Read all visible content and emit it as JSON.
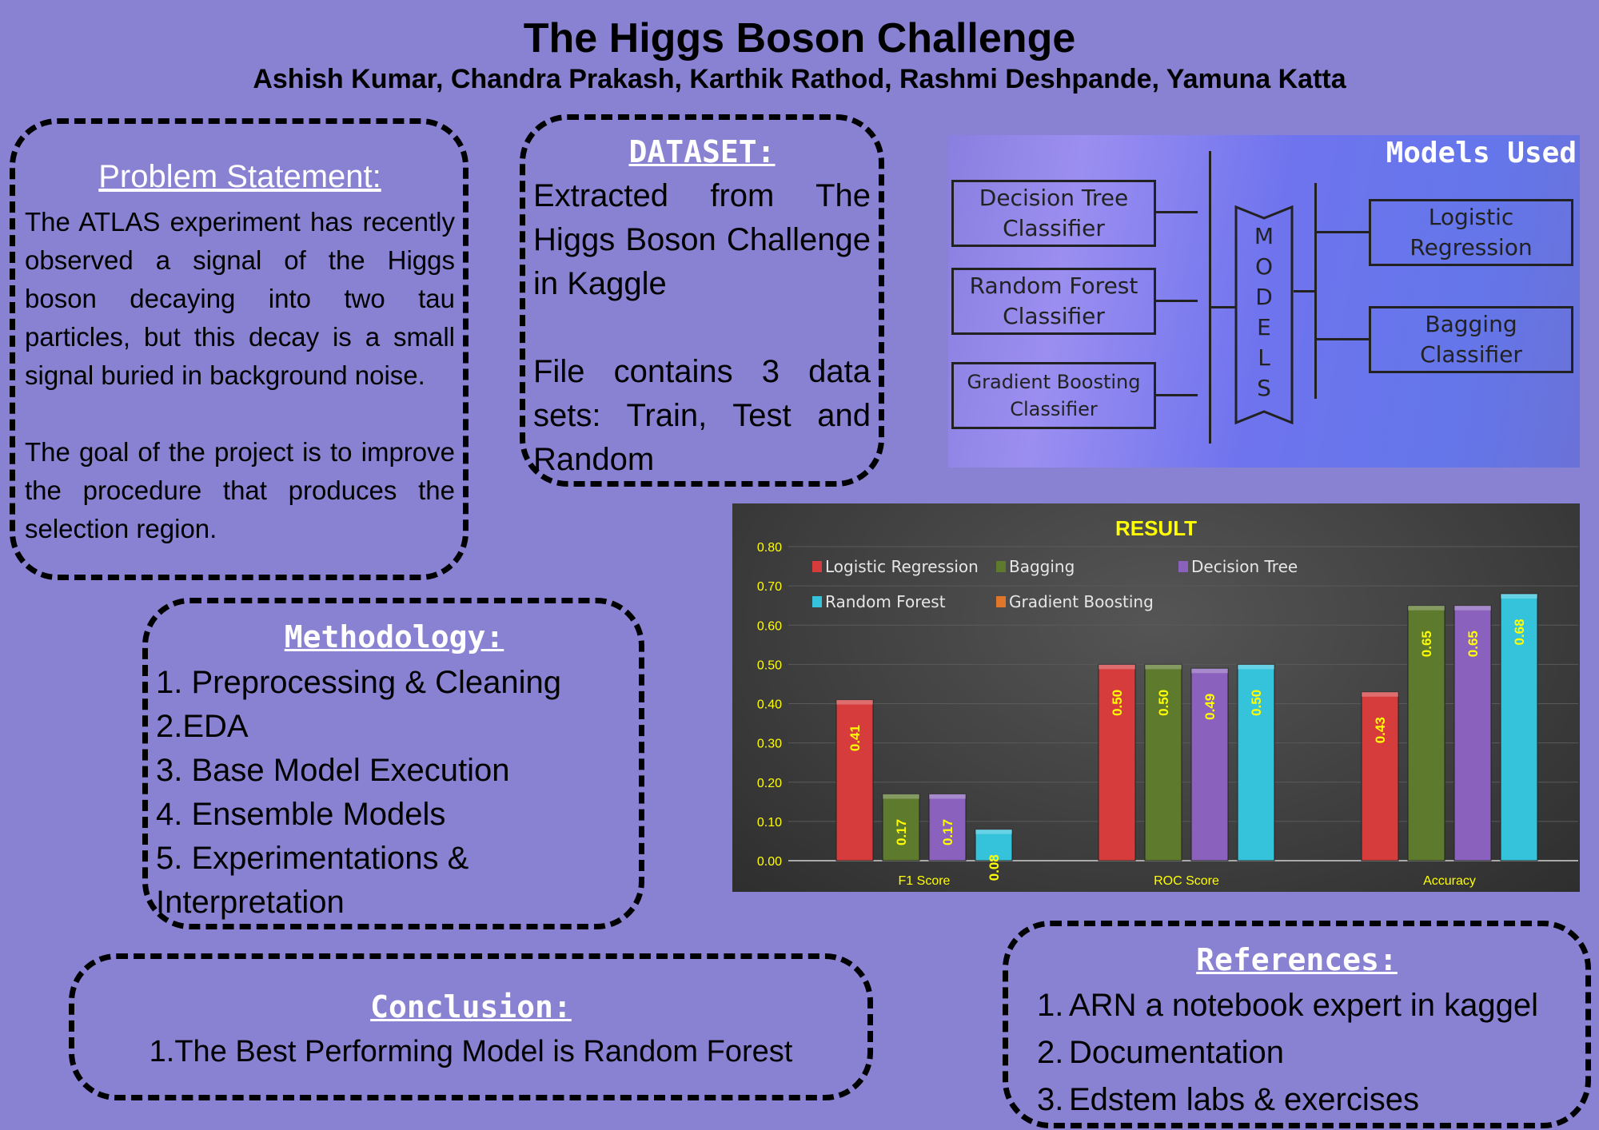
{
  "header": {
    "title": "The Higgs Boson Challenge",
    "authors": "Ashish Kumar, Chandra Prakash, Karthik Rathod, Rashmi Deshpande, Yamuna Katta"
  },
  "problem": {
    "heading": "Problem Statement:",
    "para1": "The ATLAS experiment has recently observed a signal of the Higgs boson decaying into two tau particles, but this decay is a small signal buried in background noise.",
    "para2": "The goal of the project is to improve the procedure that produces the selection region."
  },
  "dataset": {
    "heading": "DATASET:",
    "para1": "Extracted from The Higgs Boson Challenge in Kaggle",
    "para2": "File contains 3 data sets: Train, Test and Random"
  },
  "models": {
    "title": "Models Used",
    "center_letters": [
      "M",
      "O",
      "D",
      "E",
      "L",
      "S"
    ],
    "left": [
      [
        "Decision Tree",
        "Classifier"
      ],
      [
        "Random Forest",
        "Classifier"
      ],
      [
        "Gradient Boosting",
        "Classifier"
      ]
    ],
    "right": [
      [
        "Logistic",
        "Regression"
      ],
      [
        "Bagging",
        "Classifier"
      ]
    ]
  },
  "methodology": {
    "heading": "Methodology:",
    "items": [
      "1. Preprocessing & Cleaning",
      "2.EDA",
      "3. Base Model Execution",
      "4. Ensemble Models",
      "5. Experimentations & Interpretation"
    ]
  },
  "conclusion": {
    "heading": "Conclusion:",
    "item": "1.The Best Performing Model is Random Forest"
  },
  "references": {
    "heading": "References:",
    "items": [
      {
        "num": "1.",
        "text": "ARN a notebook expert in kaggel"
      },
      {
        "num": "2.",
        "text": "Documentation"
      },
      {
        "num": "3.",
        "text": "Edstem labs & exercises"
      }
    ]
  },
  "chart_data": {
    "type": "bar",
    "title": "RESULT",
    "categories": [
      "F1 Score",
      "ROC Score",
      "Accuracy"
    ],
    "ylim": [
      0,
      0.8
    ],
    "yticks": [
      "0.00",
      "0.10",
      "0.20",
      "0.30",
      "0.40",
      "0.50",
      "0.60",
      "0.70",
      "0.80"
    ],
    "grid": true,
    "legend_position": "top-left",
    "series": [
      {
        "name": "Logistic Regression",
        "color": "#d63c3c",
        "values": [
          0.41,
          0.5,
          0.43
        ],
        "labels": [
          "0.41",
          "0.50",
          "0.43"
        ]
      },
      {
        "name": "Bagging",
        "color": "#5e7a2c",
        "values": [
          0.17,
          0.5,
          0.65
        ],
        "labels": [
          "0.17",
          "0.50",
          "0.65"
        ]
      },
      {
        "name": "Decision Tree",
        "color": "#8a62bd",
        "values": [
          0.17,
          0.49,
          0.65
        ],
        "labels": [
          "0.17",
          "0.49",
          "0.65"
        ]
      },
      {
        "name": "Random Forest",
        "color": "#35c3dc",
        "values": [
          0.08,
          0.5,
          0.68
        ],
        "labels": [
          "0.08",
          "0.50",
          "0.68"
        ]
      },
      {
        "name": "Gradient Boosting",
        "color": "#e0762a",
        "values": [
          null,
          null,
          null
        ],
        "labels": [
          "",
          "",
          ""
        ]
      }
    ],
    "label_color": "#ffff00",
    "title_color": "#ffff00"
  }
}
